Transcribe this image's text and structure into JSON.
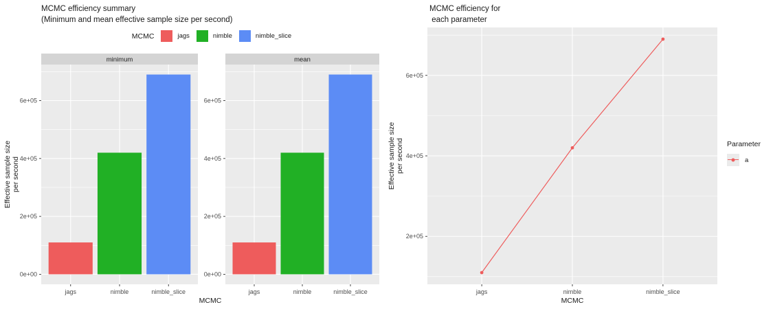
{
  "palette": {
    "red": "#ee5c5c",
    "green": "#21b025",
    "blue": "#5c8cf5",
    "panel_bg": "#ebebeb",
    "strip_bg": "#d4d4d4",
    "grid": "#ffffff",
    "axis_text": "#4d4d4d",
    "title_text": "#1a1a1a"
  },
  "chart_data": [
    {
      "type": "bar",
      "title": "MCMC efficiency summary",
      "subtitle": "(Minimum and mean effective sample size per second)",
      "legend_title": "MCMC",
      "legend_position": "top",
      "legend_items": [
        {
          "label": "jags",
          "color_key": "red"
        },
        {
          "label": "nimble",
          "color_key": "green"
        },
        {
          "label": "nimble_slice",
          "color_key": "blue"
        }
      ],
      "categories": [
        "jags",
        "nimble",
        "nimble_slice"
      ],
      "bar_color_keys": [
        "red",
        "green",
        "blue"
      ],
      "facets": [
        {
          "label": "minimum",
          "values": [
            110000,
            420000,
            690000
          ]
        },
        {
          "label": "mean",
          "values": [
            110000,
            420000,
            690000
          ]
        }
      ],
      "xlabel": "MCMC",
      "ylabel": "Effective sample size\nper second",
      "grid": true,
      "ylim": [
        -34500,
        724500
      ],
      "yticks": [
        {
          "v": 0,
          "label": "0e+00"
        },
        {
          "v": 200000,
          "label": "2e+05"
        },
        {
          "v": 400000,
          "label": "4e+05"
        },
        {
          "v": 600000,
          "label": "6e+05"
        }
      ],
      "minor_ticks": [
        100000,
        300000,
        500000,
        700000
      ]
    },
    {
      "type": "line",
      "title": "MCMC efficiency for\n each parameter",
      "legend_title": "Parameter",
      "legend_position": "right",
      "categories": [
        "jags",
        "nimble",
        "nimble_slice"
      ],
      "series": [
        {
          "name": "a",
          "color_key": "red",
          "values": [
            110000,
            420000,
            690000
          ]
        }
      ],
      "xlabel": "MCMC",
      "ylabel": "Effective sample size\nper second",
      "grid": true,
      "ylim": [
        81000,
        719000
      ],
      "yticks": [
        {
          "v": 200000,
          "label": "2e+05"
        },
        {
          "v": 400000,
          "label": "4e+05"
        },
        {
          "v": 600000,
          "label": "6e+05"
        }
      ],
      "minor_ticks": [
        100000,
        300000,
        500000,
        700000
      ]
    }
  ]
}
